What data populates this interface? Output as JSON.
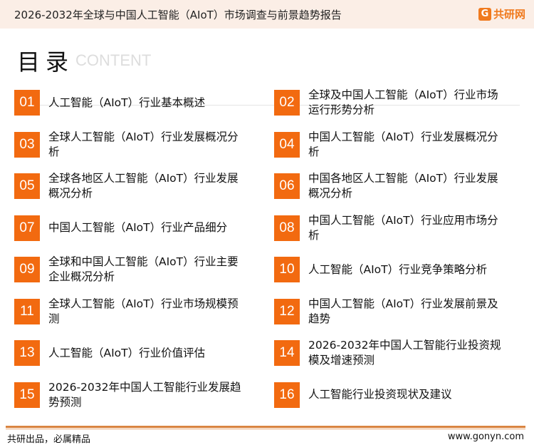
{
  "header": {
    "title": "2026-2032年全球与中国人工智能（AIoT）市场调查与前景趋势报告",
    "logo_text": "共研网",
    "logo_mark": "G"
  },
  "toc": {
    "title": "目录",
    "subtitle": "CONTENT"
  },
  "items": [
    {
      "num": "01",
      "text": "人工智能（AIoT）行业基本概述"
    },
    {
      "num": "02",
      "text": "全球及中国人工智能（AIoT）行业市场运行形势分析"
    },
    {
      "num": "03",
      "text": "全球人工智能（AIoT）行业发展概况分析"
    },
    {
      "num": "04",
      "text": "中国人工智能（AIoT）行业发展概况分析"
    },
    {
      "num": "05",
      "text": "全球各地区人工智能（AIoT）行业发展概况分析"
    },
    {
      "num": "06",
      "text": "中国各地区人工智能（AIoT）行业发展概况分析"
    },
    {
      "num": "07",
      "text": "中国人工智能（AIoT）行业产品细分"
    },
    {
      "num": "08",
      "text": "中国人工智能（AIoT）行业应用市场分析"
    },
    {
      "num": "09",
      "text": "全球和中国人工智能（AIoT）行业主要企业概况分析"
    },
    {
      "num": "10",
      "text": "人工智能（AIoT）行业竞争策略分析"
    },
    {
      "num": "11",
      "text": "全球人工智能（AIoT）行业市场规模预测"
    },
    {
      "num": "12",
      "text": "中国人工智能（AIoT）行业发展前景及趋势"
    },
    {
      "num": "13",
      "text": "人工智能（AIoT）行业价值评估"
    },
    {
      "num": "14",
      "text": "2026-2032年中国人工智能行业投资规模及增速预测"
    },
    {
      "num": "15",
      "text": "2026-2032年中国人工智能行业发展趋势预测"
    },
    {
      "num": "16",
      "text": "人工智能行业投资现状及建议"
    }
  ],
  "footer": {
    "slogan": "共研出品，必属精品",
    "url": "www.gonyn.com"
  },
  "colors": {
    "accent": "#f26a10",
    "header_bg": "#fbeee6"
  }
}
